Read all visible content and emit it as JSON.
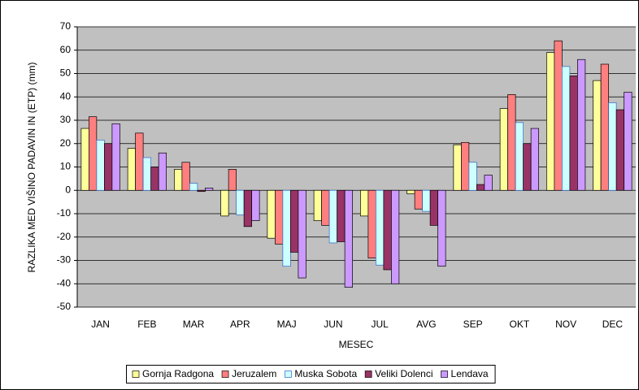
{
  "chart_data": {
    "type": "bar",
    "xlabel": "MESEC",
    "ylabel": "RAZLIKA MED VIŠINO PADAVIN IN (ETP) (mm)",
    "categories": [
      "JAN",
      "FEB",
      "MAR",
      "APR",
      "MAJ",
      "JUN",
      "JUL",
      "AVG",
      "SEP",
      "OKT",
      "NOV",
      "DEC"
    ],
    "series": [
      {
        "name": "Gornja Radgona",
        "color": "#ffff99",
        "values": [
          26.5,
          18,
          9,
          -11,
          -20.5,
          -13,
          -11,
          -1.5,
          19.5,
          35,
          59,
          47
        ]
      },
      {
        "name": "Jeruzalem",
        "color": "#ff7f7f",
        "values": [
          31.5,
          24.5,
          12,
          9,
          -23,
          -15,
          -29,
          -8,
          20.5,
          41,
          64,
          54
        ]
      },
      {
        "name": "Muska Sobota",
        "color": "#ccffff",
        "values": [
          21.5,
          14,
          3,
          -10.5,
          -32.5,
          -22.5,
          -32,
          -9,
          12,
          29,
          53,
          37.5
        ]
      },
      {
        "name": "Veliki Dolenci",
        "color": "#993366",
        "values": [
          20,
          10,
          -0.5,
          -15.5,
          -26.5,
          -22,
          -34,
          -15,
          2.5,
          20,
          49,
          34.5
        ]
      },
      {
        "name": "Lendava",
        "color": "#cc99ff",
        "values": [
          28.5,
          16,
          1,
          -13,
          -37.5,
          -41.5,
          -40,
          -32.5,
          6.5,
          26.5,
          56,
          42
        ]
      }
    ],
    "ylim": [
      -50,
      70
    ],
    "yticks": [
      -50,
      -40,
      -30,
      -20,
      -10,
      0,
      10,
      20,
      30,
      40,
      50,
      60,
      70
    ],
    "grid": true,
    "legend": "bottom"
  }
}
